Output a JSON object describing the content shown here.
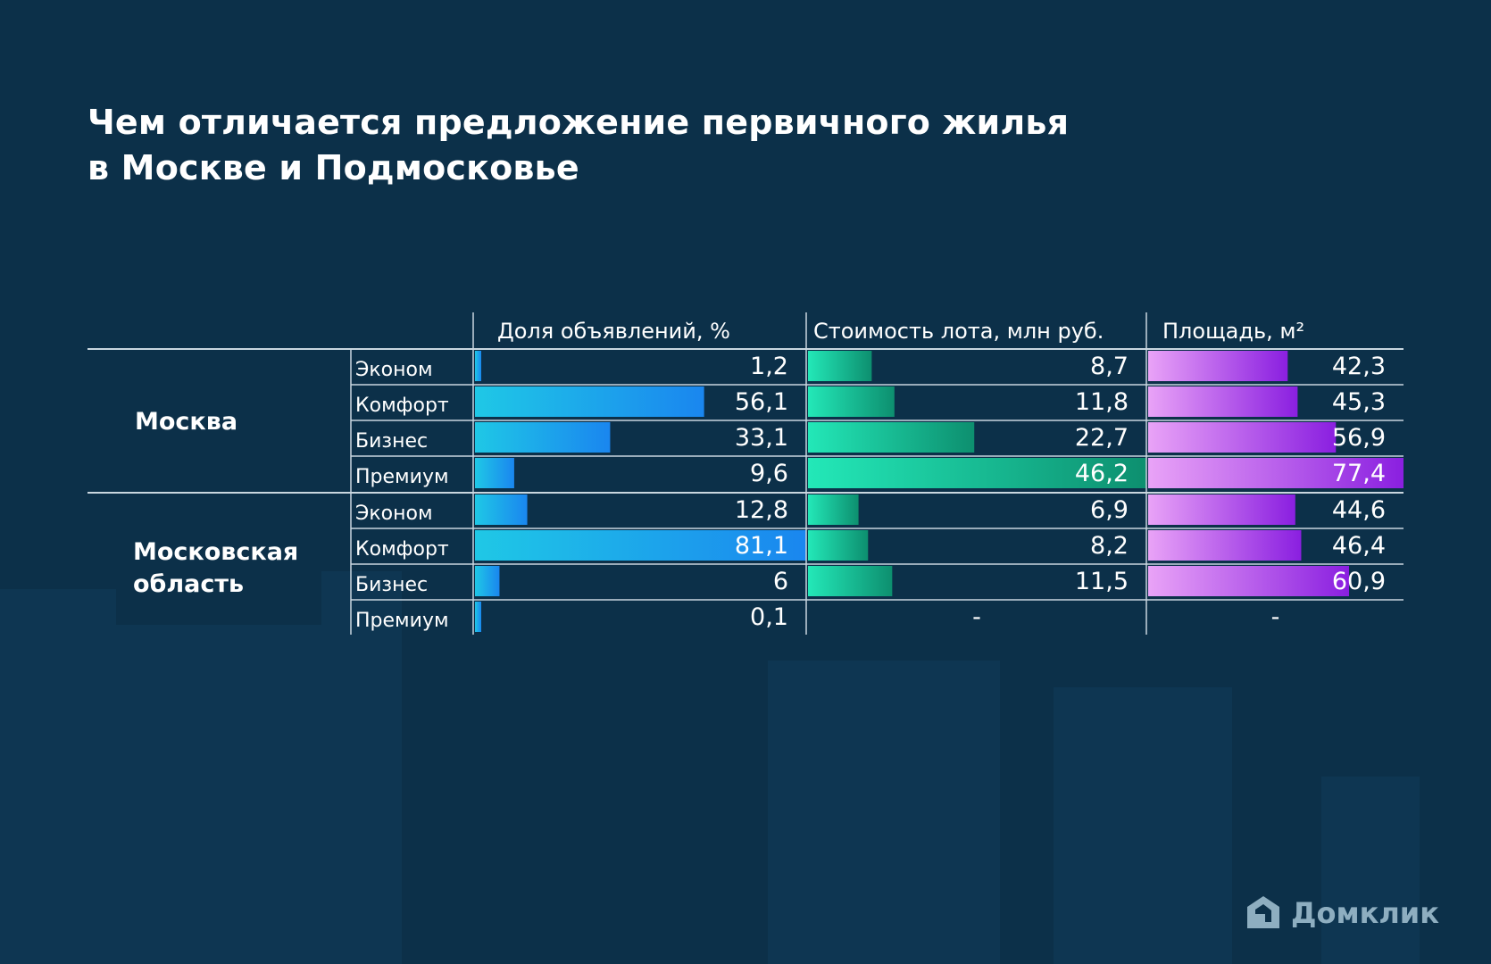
{
  "title": {
    "line1": "Чем отличается предложение первичного жилья",
    "line2": "в Москве и Подмосковье"
  },
  "chart_data": {
    "type": "bar",
    "title": "Чем отличается предложение первичного жилья в Москве и Подмосковье",
    "groups": [
      "Москва",
      "Московская область"
    ],
    "regions": [
      {
        "name": "Москва",
        "lines": [
          "Москва"
        ],
        "categories": [
          "Эконом",
          "Комфорт",
          "Бизнес",
          "Премиум"
        ]
      },
      {
        "name": "Московская область",
        "lines": [
          "Московская",
          "область"
        ],
        "categories": [
          "Эконом",
          "Комфорт",
          "Бизнес",
          "Премиум"
        ]
      }
    ],
    "series": [
      {
        "name": "Доля объявлений, %",
        "max": 81.1,
        "values": [
          1.2,
          56.1,
          33.1,
          9.6,
          12.8,
          81.1,
          6,
          0.1
        ],
        "labels": [
          "1,2",
          "56,1",
          "33,1",
          "9,6",
          "12,8",
          "81,1",
          "6",
          "0,1"
        ],
        "colors": [
          "#1fc8e6",
          "#1a86ef"
        ]
      },
      {
        "name": "Стоимость лота, млн руб.",
        "max": 46.2,
        "values": [
          8.7,
          11.8,
          22.7,
          46.2,
          6.9,
          8.2,
          11.5,
          null
        ],
        "labels": [
          "8,7",
          "11,8",
          "22,7",
          "46,2",
          "6,9",
          "8,2",
          "11,5",
          "-"
        ],
        "colors": [
          "#23e8b8",
          "#0d8f6f"
        ]
      },
      {
        "name": "Площадь, м²",
        "max": 77.4,
        "values": [
          42.3,
          45.3,
          56.9,
          77.4,
          44.6,
          46.4,
          60.9,
          null
        ],
        "labels": [
          "42,3",
          "45,3",
          "56,9",
          "77,4",
          "44,6",
          "46,4",
          "60,9",
          "-"
        ],
        "colors": [
          "#e9a3f7",
          "#8a1fe0"
        ]
      }
    ]
  },
  "brand": {
    "name": "Домклик"
  },
  "colors": {
    "background": "#0c3049",
    "grid": "#c9d6df"
  }
}
